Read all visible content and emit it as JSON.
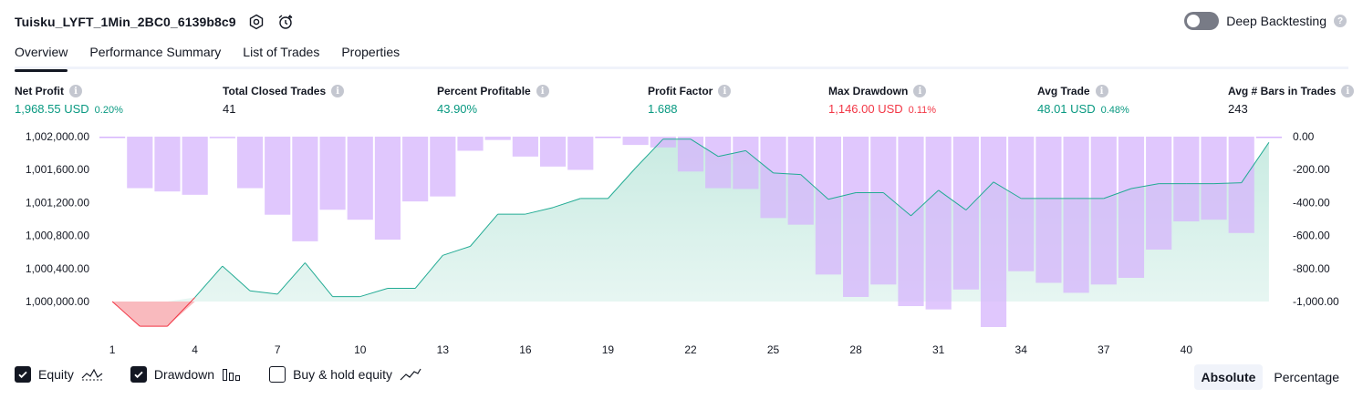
{
  "header": {
    "title": "Tuisku_LYFT_1Min_2BC0_6139b8c9",
    "deep_backtesting_label": "Deep Backtesting",
    "help_glyph": "?"
  },
  "tabs": [
    {
      "label": "Overview",
      "active": true
    },
    {
      "label": "Performance Summary",
      "active": false
    },
    {
      "label": "List of Trades",
      "active": false
    },
    {
      "label": "Properties",
      "active": false
    }
  ],
  "stats": [
    {
      "label": "Net Profit",
      "value": "1,968.55 USD",
      "pct": "0.20%",
      "color": "#089981"
    },
    {
      "label": "Total Closed Trades",
      "value": "41",
      "pct": "",
      "color": "#131722"
    },
    {
      "label": "Percent Profitable",
      "value": "43.90%",
      "pct": "",
      "color": "#089981"
    },
    {
      "label": "Profit Factor",
      "value": "1.688",
      "pct": "",
      "color": "#089981"
    },
    {
      "label": "Max Drawdown",
      "value": "1,146.00 USD",
      "pct": "0.11%",
      "color": "#f23645"
    },
    {
      "label": "Avg Trade",
      "value": "48.01 USD",
      "pct": "0.48%",
      "color": "#089981"
    },
    {
      "label": "Avg # Bars in Trades",
      "value": "243",
      "pct": "",
      "color": "#131722"
    }
  ],
  "info_glyph": "i",
  "footer": {
    "equity_label": "Equity",
    "drawdown_label": "Drawdown",
    "buy_hold_label": "Buy & hold equity",
    "equity_checked": true,
    "drawdown_checked": true,
    "buy_hold_checked": false,
    "absolute_label": "Absolute",
    "percentage_label": "Percentage",
    "selected_mode": "Absolute"
  },
  "colors": {
    "equity_line": "#22ab94",
    "equity_fill": "#c9ebe2",
    "loss_line": "#f23645",
    "loss_fill": "#f7a9ae",
    "drawdown_fill": "#d6b4fc"
  },
  "chart_data": {
    "type": "area",
    "x": [
      1,
      2,
      3,
      4,
      5,
      6,
      7,
      8,
      9,
      10,
      11,
      12,
      13,
      14,
      15,
      16,
      17,
      18,
      19,
      20,
      21,
      22,
      23,
      24,
      25,
      26,
      27,
      28,
      29,
      30,
      31,
      32,
      33,
      34,
      35,
      36,
      37,
      38,
      39,
      40,
      41,
      42,
      43
    ],
    "x_ticks": [
      1,
      4,
      7,
      10,
      13,
      16,
      19,
      22,
      25,
      28,
      31,
      34,
      37,
      40
    ],
    "series": [
      {
        "name": "Equity",
        "axis": "left",
        "values": [
          1000000,
          999700,
          999700,
          1000050,
          1000430,
          1000130,
          1000090,
          1000470,
          1000060,
          1000060,
          1000160,
          1000160,
          1000560,
          1000670,
          1001060,
          1001060,
          1001140,
          1001250,
          1001250,
          1001620,
          1001970,
          1001970,
          1001760,
          1001830,
          1001560,
          1001540,
          1001240,
          1001320,
          1001320,
          1001040,
          1001350,
          1001110,
          1001450,
          1001250,
          1001250,
          1001250,
          1001250,
          1001370,
          1001430,
          1001430,
          1001430,
          1001440,
          1001930
        ]
      },
      {
        "name": "Drawdown",
        "axis": "right",
        "values": [
          0,
          -310,
          -330,
          -350,
          -10,
          -310,
          -470,
          -630,
          -440,
          -500,
          -620,
          -390,
          -360,
          -85,
          -20,
          -120,
          -180,
          -200,
          0,
          -50,
          -65,
          -210,
          -310,
          -315,
          -490,
          -530,
          -830,
          -965,
          -890,
          -1020,
          -1040,
          -920,
          -1146,
          -810,
          -880,
          -940,
          -890,
          -850,
          -680,
          -510,
          -500,
          -580,
          0
        ]
      }
    ],
    "y_left_ticks": [
      "1,002,000.00",
      "1,001,600.00",
      "1,001,200.00",
      "1,000,800.00",
      "1,000,400.00",
      "1,000,000.00"
    ],
    "y_right_ticks": [
      "0.00",
      "-200.00",
      "-400.00",
      "-600.00",
      "-800.00",
      "-1,000.00"
    ],
    "ylim_left": [
      999700,
      1002000
    ],
    "ylim_right": [
      -1146,
      0
    ]
  }
}
